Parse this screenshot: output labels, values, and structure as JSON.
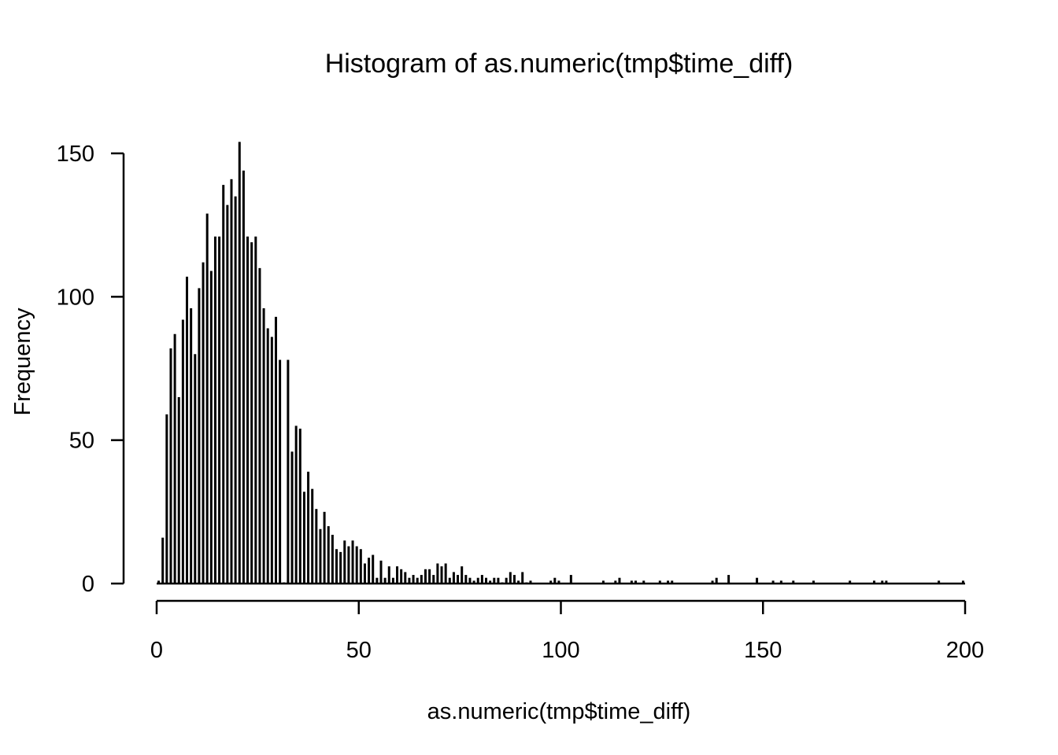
{
  "chart_data": {
    "type": "bar",
    "title": "Histogram of as.numeric(tmp$time_diff)",
    "xlabel": "as.numeric(tmp$time_diff)",
    "ylabel": "Frequency",
    "xlim": [
      0,
      200
    ],
    "ylim": [
      0,
      150
    ],
    "x_ticks": [
      "0",
      "50",
      "100",
      "150",
      "200"
    ],
    "y_ticks": [
      "0",
      "50",
      "100",
      "150"
    ],
    "bin_width": 1,
    "bins": [
      {
        "x": 0,
        "count": 1
      },
      {
        "x": 1,
        "count": 16
      },
      {
        "x": 2,
        "count": 59
      },
      {
        "x": 3,
        "count": 82
      },
      {
        "x": 4,
        "count": 87
      },
      {
        "x": 5,
        "count": 65
      },
      {
        "x": 6,
        "count": 92
      },
      {
        "x": 7,
        "count": 107
      },
      {
        "x": 8,
        "count": 96
      },
      {
        "x": 9,
        "count": 80
      },
      {
        "x": 10,
        "count": 103
      },
      {
        "x": 11,
        "count": 112
      },
      {
        "x": 12,
        "count": 129
      },
      {
        "x": 13,
        "count": 109
      },
      {
        "x": 14,
        "count": 121
      },
      {
        "x": 15,
        "count": 121
      },
      {
        "x": 16,
        "count": 139
      },
      {
        "x": 17,
        "count": 132
      },
      {
        "x": 18,
        "count": 141
      },
      {
        "x": 19,
        "count": 135
      },
      {
        "x": 20,
        "count": 154
      },
      {
        "x": 21,
        "count": 144
      },
      {
        "x": 22,
        "count": 121
      },
      {
        "x": 23,
        "count": 119
      },
      {
        "x": 24,
        "count": 121
      },
      {
        "x": 25,
        "count": 110
      },
      {
        "x": 26,
        "count": 96
      },
      {
        "x": 27,
        "count": 89
      },
      {
        "x": 28,
        "count": 86
      },
      {
        "x": 29,
        "count": 93
      },
      {
        "x": 30,
        "count": 78
      },
      {
        "x": 31,
        "count": 0
      },
      {
        "x": 32,
        "count": 78
      },
      {
        "x": 33,
        "count": 46
      },
      {
        "x": 34,
        "count": 55
      },
      {
        "x": 35,
        "count": 54
      },
      {
        "x": 36,
        "count": 32
      },
      {
        "x": 37,
        "count": 39
      },
      {
        "x": 38,
        "count": 33
      },
      {
        "x": 39,
        "count": 26
      },
      {
        "x": 40,
        "count": 19
      },
      {
        "x": 41,
        "count": 25
      },
      {
        "x": 42,
        "count": 20
      },
      {
        "x": 43,
        "count": 17
      },
      {
        "x": 44,
        "count": 12
      },
      {
        "x": 45,
        "count": 11
      },
      {
        "x": 46,
        "count": 15
      },
      {
        "x": 47,
        "count": 13
      },
      {
        "x": 48,
        "count": 15
      },
      {
        "x": 49,
        "count": 13
      },
      {
        "x": 50,
        "count": 12
      },
      {
        "x": 51,
        "count": 7
      },
      {
        "x": 52,
        "count": 9
      },
      {
        "x": 53,
        "count": 10
      },
      {
        "x": 54,
        "count": 2
      },
      {
        "x": 55,
        "count": 8
      },
      {
        "x": 56,
        "count": 2
      },
      {
        "x": 57,
        "count": 6
      },
      {
        "x": 58,
        "count": 2
      },
      {
        "x": 59,
        "count": 6
      },
      {
        "x": 60,
        "count": 5
      },
      {
        "x": 61,
        "count": 4
      },
      {
        "x": 62,
        "count": 2
      },
      {
        "x": 63,
        "count": 3
      },
      {
        "x": 64,
        "count": 2
      },
      {
        "x": 65,
        "count": 3
      },
      {
        "x": 66,
        "count": 5
      },
      {
        "x": 67,
        "count": 5
      },
      {
        "x": 68,
        "count": 3
      },
      {
        "x": 69,
        "count": 7
      },
      {
        "x": 70,
        "count": 6
      },
      {
        "x": 71,
        "count": 7
      },
      {
        "x": 72,
        "count": 2
      },
      {
        "x": 73,
        "count": 4
      },
      {
        "x": 74,
        "count": 3
      },
      {
        "x": 75,
        "count": 6
      },
      {
        "x": 76,
        "count": 3
      },
      {
        "x": 77,
        "count": 2
      },
      {
        "x": 78,
        "count": 1
      },
      {
        "x": 79,
        "count": 2
      },
      {
        "x": 80,
        "count": 3
      },
      {
        "x": 81,
        "count": 2
      },
      {
        "x": 82,
        "count": 1
      },
      {
        "x": 83,
        "count": 2
      },
      {
        "x": 84,
        "count": 2
      },
      {
        "x": 85,
        "count": 0
      },
      {
        "x": 86,
        "count": 2
      },
      {
        "x": 87,
        "count": 4
      },
      {
        "x": 88,
        "count": 3
      },
      {
        "x": 89,
        "count": 1
      },
      {
        "x": 90,
        "count": 4
      },
      {
        "x": 91,
        "count": 0
      },
      {
        "x": 92,
        "count": 1
      },
      {
        "x": 97,
        "count": 1
      },
      {
        "x": 98,
        "count": 2
      },
      {
        "x": 99,
        "count": 1
      },
      {
        "x": 102,
        "count": 3
      },
      {
        "x": 110,
        "count": 1
      },
      {
        "x": 113,
        "count": 1
      },
      {
        "x": 114,
        "count": 2
      },
      {
        "x": 117,
        "count": 1
      },
      {
        "x": 118,
        "count": 1
      },
      {
        "x": 120,
        "count": 1
      },
      {
        "x": 124,
        "count": 1
      },
      {
        "x": 126,
        "count": 1
      },
      {
        "x": 127,
        "count": 1
      },
      {
        "x": 137,
        "count": 1
      },
      {
        "x": 138,
        "count": 2
      },
      {
        "x": 141,
        "count": 3
      },
      {
        "x": 148,
        "count": 2
      },
      {
        "x": 152,
        "count": 1
      },
      {
        "x": 154,
        "count": 1
      },
      {
        "x": 157,
        "count": 1
      },
      {
        "x": 162,
        "count": 1
      },
      {
        "x": 171,
        "count": 1
      },
      {
        "x": 177,
        "count": 1
      },
      {
        "x": 179,
        "count": 1
      },
      {
        "x": 180,
        "count": 1
      },
      {
        "x": 193,
        "count": 1
      },
      {
        "x": 199,
        "count": 1
      }
    ]
  }
}
